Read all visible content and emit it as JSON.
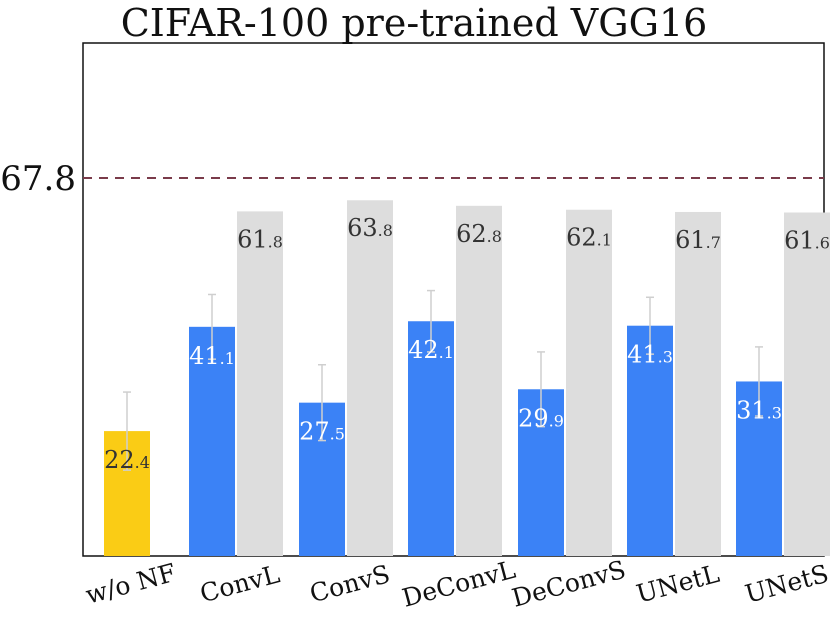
{
  "chart_data": {
    "type": "bar",
    "title": "CIFAR-100 pre-trained VGG16",
    "xlabel": "",
    "ylabel": "",
    "ylim": [
      0,
      92
    ],
    "grid": false,
    "reference_line": {
      "value": 67.8,
      "label": "67.8",
      "style": "dashed"
    },
    "categories": [
      "w/o NF",
      "ConvL",
      "ConvS",
      "DeConvL",
      "DeConvS",
      "UNetL",
      "UNetS"
    ],
    "series": [
      {
        "name": "main",
        "values": [
          22.4,
          41.1,
          27.5,
          42.1,
          29.9,
          41.3,
          31.3
        ],
        "labels": [
          {
            "int": "22",
            "frac": ".4"
          },
          {
            "int": "41",
            "frac": ".1"
          },
          {
            "int": "27",
            "frac": ".5"
          },
          {
            "int": "42",
            "frac": ".1"
          },
          {
            "int": "29",
            "frac": ".9"
          },
          {
            "int": "41",
            "frac": ".3"
          },
          {
            "int": "31",
            "frac": ".3"
          }
        ],
        "error": [
          7.0,
          5.8,
          6.8,
          5.5,
          6.7,
          5.1,
          6.2
        ],
        "colors": [
          "#FACC15",
          "#3B82F6",
          "#3B82F6",
          "#3B82F6",
          "#3B82F6",
          "#3B82F6",
          "#3B82F6"
        ]
      },
      {
        "name": "secondary",
        "values": [
          null,
          61.8,
          63.8,
          62.8,
          62.1,
          61.7,
          61.6
        ],
        "labels": [
          null,
          {
            "int": "61",
            "frac": ".8"
          },
          {
            "int": "63",
            "frac": ".8"
          },
          {
            "int": "62",
            "frac": ".8"
          },
          {
            "int": "62",
            "frac": ".1"
          },
          {
            "int": "61",
            "frac": ".7"
          },
          {
            "int": "61",
            "frac": ".6"
          }
        ],
        "color": "#DDDDDD"
      }
    ],
    "colors": {
      "baseline": "#FACC15",
      "nf": "#3B82F6",
      "reference_bar": "#DDDDDD",
      "reference_line": "#7A3B4A",
      "error_bar": "#CFCFCF",
      "label_dark": "#333333",
      "label_light": "#FFFFFF"
    }
  }
}
